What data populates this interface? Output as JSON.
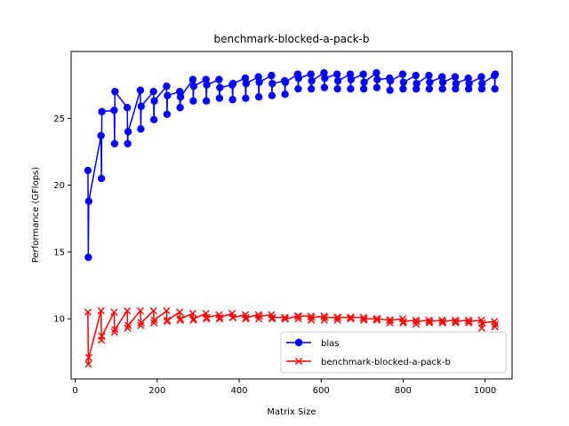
{
  "chart_data": {
    "type": "line",
    "title": "benchmark-blocked-a-pack-b",
    "xlabel": "Matrix Size",
    "ylabel": "Performance (GFlops)",
    "xlim": [
      -10,
      1066
    ],
    "ylim": [
      5.5,
      30
    ],
    "xticks": [
      0,
      200,
      400,
      600,
      800,
      1000
    ],
    "yticks": [
      10,
      15,
      20,
      25
    ],
    "grid": false,
    "legend_position": "lower-right",
    "series": [
      {
        "name": "blas",
        "color": "#0000ff",
        "marker": "circle",
        "x": [
          31,
          32,
          33,
          63,
          64,
          65,
          95,
          96,
          97,
          127,
          128,
          129,
          159,
          160,
          161,
          191,
          192,
          193,
          223,
          224,
          225,
          255,
          256,
          257,
          287,
          288,
          289,
          319,
          320,
          321,
          351,
          352,
          353,
          383,
          384,
          385,
          415,
          416,
          417,
          447,
          448,
          449,
          479,
          480,
          481,
          511,
          512,
          513,
          543,
          544,
          545,
          575,
          576,
          577,
          607,
          608,
          609,
          639,
          640,
          641,
          671,
          672,
          673,
          703,
          704,
          705,
          735,
          736,
          737,
          767,
          768,
          769,
          799,
          800,
          801,
          831,
          832,
          833,
          863,
          864,
          865,
          895,
          896,
          897,
          927,
          928,
          929,
          959,
          960,
          961,
          991,
          992,
          993,
          1023,
          1024,
          1025
        ],
        "y": [
          21.1,
          14.6,
          18.8,
          23.7,
          20.5,
          25.5,
          25.6,
          23.1,
          27.0,
          25.8,
          23.1,
          24.0,
          27.1,
          24.2,
          25.9,
          27.0,
          24.9,
          26.3,
          27.4,
          25.3,
          26.7,
          27.0,
          25.8,
          26.6,
          27.9,
          26.3,
          27.4,
          27.9,
          26.3,
          27.5,
          27.9,
          26.5,
          27.3,
          27.5,
          26.4,
          27.6,
          28.0,
          26.5,
          27.6,
          28.1,
          26.6,
          27.7,
          28.2,
          26.7,
          27.6,
          27.8,
          26.8,
          27.7,
          28.3,
          27.2,
          28.0,
          28.3,
          27.2,
          27.8,
          28.4,
          27.3,
          28.0,
          28.3,
          27.2,
          27.8,
          28.3,
          27.2,
          27.9,
          28.3,
          27.2,
          27.7,
          28.4,
          27.3,
          27.9,
          28.0,
          27.1,
          27.8,
          28.3,
          27.2,
          27.7,
          28.2,
          27.2,
          27.6,
          28.2,
          27.2,
          27.7,
          28.1,
          27.2,
          27.7,
          28.1,
          27.2,
          27.6,
          28.0,
          27.2,
          27.6,
          28.1,
          27.2,
          27.6,
          28.2,
          27.2,
          28.3
        ]
      },
      {
        "name": "benchmark-blocked-a-pack-b",
        "color": "#ff0000",
        "marker": "x",
        "x": [
          31,
          32,
          33,
          63,
          64,
          65,
          95,
          96,
          97,
          127,
          128,
          129,
          159,
          160,
          161,
          191,
          192,
          193,
          223,
          224,
          225,
          255,
          256,
          257,
          287,
          288,
          289,
          319,
          320,
          321,
          351,
          352,
          353,
          383,
          384,
          385,
          415,
          416,
          417,
          447,
          448,
          449,
          479,
          480,
          481,
          511,
          512,
          513,
          543,
          544,
          545,
          575,
          576,
          577,
          607,
          608,
          609,
          639,
          640,
          641,
          671,
          672,
          673,
          703,
          704,
          705,
          735,
          736,
          737,
          767,
          768,
          769,
          799,
          800,
          801,
          831,
          832,
          833,
          863,
          864,
          865,
          895,
          896,
          897,
          927,
          928,
          929,
          959,
          960,
          961,
          991,
          992,
          993,
          1023,
          1024,
          1025
        ],
        "y": [
          10.5,
          6.6,
          7.1,
          10.6,
          8.4,
          8.7,
          10.5,
          9.0,
          9.2,
          10.6,
          9.3,
          9.5,
          10.6,
          9.5,
          9.7,
          10.6,
          9.7,
          9.9,
          10.6,
          9.8,
          9.9,
          10.5,
          9.9,
          10.0,
          10.4,
          9.9,
          10.0,
          10.4,
          10.0,
          10.1,
          10.3,
          10.0,
          10.1,
          10.4,
          10.1,
          10.1,
          10.3,
          10.0,
          10.1,
          10.3,
          10.0,
          10.2,
          10.3,
          10.0,
          10.1,
          10.1,
          10.0,
          10.0,
          10.2,
          10.0,
          10.2,
          10.2,
          9.9,
          10.1,
          10.2,
          9.9,
          10.1,
          10.1,
          9.9,
          10.1,
          10.1,
          10.0,
          10.1,
          10.1,
          9.9,
          10.0,
          10.0,
          9.9,
          10.0,
          9.9,
          9.7,
          9.9,
          10.0,
          9.7,
          9.8,
          9.9,
          9.6,
          9.8,
          9.9,
          9.7,
          9.8,
          9.9,
          9.7,
          9.8,
          9.9,
          9.7,
          9.8,
          9.9,
          9.7,
          9.8,
          9.9,
          9.3,
          9.7,
          9.8,
          9.4,
          9.6
        ]
      }
    ]
  }
}
